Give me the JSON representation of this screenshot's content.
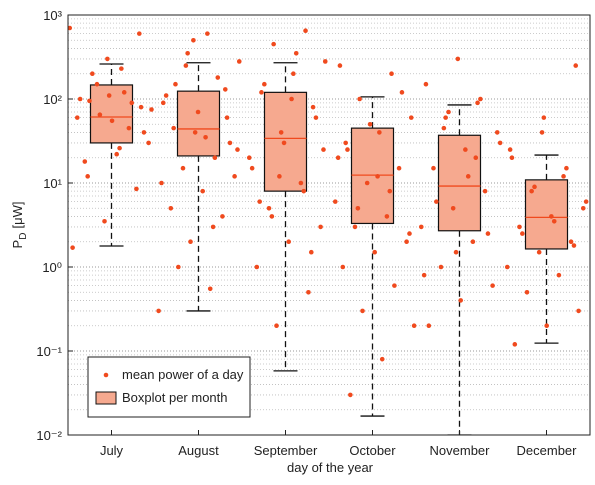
{
  "chart_data": {
    "type": "box",
    "xlabel": "day of the year",
    "ylabel": {
      "main": "P",
      "sub": "D",
      "unit": "[μW]"
    },
    "categories": [
      "July",
      "August",
      "September",
      "October",
      "November",
      "December"
    ],
    "log_y": true,
    "grid": true,
    "ylim": [
      0.01,
      1000
    ],
    "yticks": [
      {
        "value": 0.01,
        "label": "10⁻²"
      },
      {
        "value": 0.1,
        "label": "10⁻¹"
      },
      {
        "value": 1,
        "label": "10⁰"
      },
      {
        "value": 10,
        "label": "10¹"
      },
      {
        "value": 100,
        "label": "10²"
      },
      {
        "value": 1000,
        "label": "10³"
      }
    ],
    "minor_yticks": [
      0.02,
      0.03,
      0.04,
      0.05,
      0.06,
      0.07,
      0.08,
      0.09,
      0.2,
      0.3,
      0.4,
      0.5,
      0.6,
      0.7,
      0.8,
      0.9,
      2,
      3,
      4,
      5,
      6,
      7,
      8,
      9,
      20,
      30,
      40,
      50,
      60,
      70,
      80,
      90,
      200,
      300,
      400,
      500,
      600,
      700,
      800,
      900
    ],
    "legend_position": "lower left",
    "boxes": {
      "name": "Boxplot per month",
      "color": "#f6a98f",
      "median_color": "#f04a1e",
      "values": [
        {
          "min": 1.78,
          "q1": 30,
          "median": 61,
          "q3": 147,
          "max": 261
        },
        {
          "min": 0.3,
          "q1": 21,
          "median": 44,
          "q3": 124,
          "max": 270
        },
        {
          "min": 0.058,
          "q1": 8,
          "median": 34,
          "q3": 120,
          "max": 270
        },
        {
          "min": 0.0168,
          "q1": 3.3,
          "median": 12.4,
          "q3": 45,
          "max": 106
        },
        {
          "min": 0.01,
          "q1": 2.7,
          "median": 9.2,
          "q3": 37,
          "max": 85
        },
        {
          "min": 0.124,
          "q1": 1.64,
          "median": 3.9,
          "q3": 10.9,
          "max": 21.5
        }
      ]
    },
    "points": {
      "name": "mean power of a day",
      "color": "#f04a1e",
      "values": [
        [
          700,
          230,
          95,
          80,
          110,
          60,
          45,
          150,
          30,
          22,
          18,
          8.5,
          3.5,
          1.7,
          120,
          200,
          40,
          55,
          100,
          90,
          65,
          75,
          26,
          12,
          600,
          300
        ],
        [
          350,
          280,
          600,
          150,
          60,
          40,
          90,
          20,
          15,
          12,
          8,
          5,
          4,
          2,
          0.3,
          0.55,
          1,
          30,
          70,
          110,
          180,
          250,
          25,
          35,
          45,
          130,
          500,
          10,
          3
        ],
        [
          650,
          450,
          280,
          200,
          120,
          80,
          40,
          20,
          10,
          5,
          3,
          2,
          1,
          0.5,
          0.2,
          0.06,
          350,
          150,
          60,
          30,
          15,
          8,
          4,
          25,
          100,
          6,
          1.5,
          12
        ],
        [
          250,
          200,
          100,
          60,
          40,
          25,
          15,
          10,
          6,
          4,
          3,
          2,
          1.5,
          1,
          0.6,
          0.3,
          0.2,
          0.08,
          0.03,
          120,
          50,
          20,
          8,
          5,
          2.5,
          12,
          30
        ],
        [
          300,
          150,
          90,
          60,
          40,
          25,
          15,
          8,
          5,
          3,
          2,
          1,
          0.6,
          0.4,
          0.2,
          100,
          70,
          30,
          12,
          6,
          2.5,
          1.5,
          0.8,
          20,
          45
        ],
        [
          250,
          60,
          20,
          12,
          8,
          5,
          4,
          3,
          2,
          1.5,
          1,
          0.8,
          0.5,
          0.3,
          0.2,
          0.12,
          15,
          9,
          6,
          3.5,
          2.5,
          1.8,
          40,
          25
        ]
      ]
    }
  }
}
